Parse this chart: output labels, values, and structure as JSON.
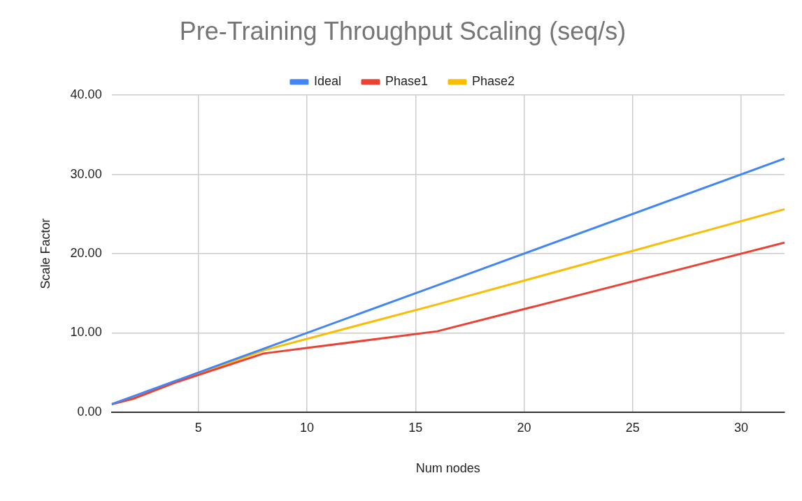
{
  "chart_data": {
    "type": "line",
    "title": "Pre-Training Throughput Scaling (seq/s)",
    "xlabel": "Num nodes",
    "ylabel": "Scale Factor",
    "x": [
      1,
      2,
      4,
      8,
      16,
      32
    ],
    "series": [
      {
        "name": "Ideal",
        "color": "#4285f4",
        "values": [
          1,
          2,
          4,
          8,
          16,
          32
        ]
      },
      {
        "name": "Phase1",
        "color": "#ea4335",
        "values": [
          1,
          1.7,
          3.8,
          7.4,
          10.2,
          21.4
        ]
      },
      {
        "name": "Phase2",
        "color": "#fbbc04",
        "values": [
          1,
          1.7,
          3.8,
          7.8,
          13.6,
          25.6
        ]
      }
    ],
    "xlim": [
      1,
      32
    ],
    "xticks": [
      5,
      10,
      15,
      20,
      25,
      30
    ],
    "ylim": [
      0,
      40
    ],
    "yticks": [
      {
        "value": 0,
        "label": "0.00"
      },
      {
        "value": 10,
        "label": "10.00"
      },
      {
        "value": 20,
        "label": "20.00"
      },
      {
        "value": 30,
        "label": "30.00"
      },
      {
        "value": 40,
        "label": "40.00"
      }
    ],
    "grid": true,
    "legend": "top",
    "marker": "none",
    "line_style": "solid"
  }
}
